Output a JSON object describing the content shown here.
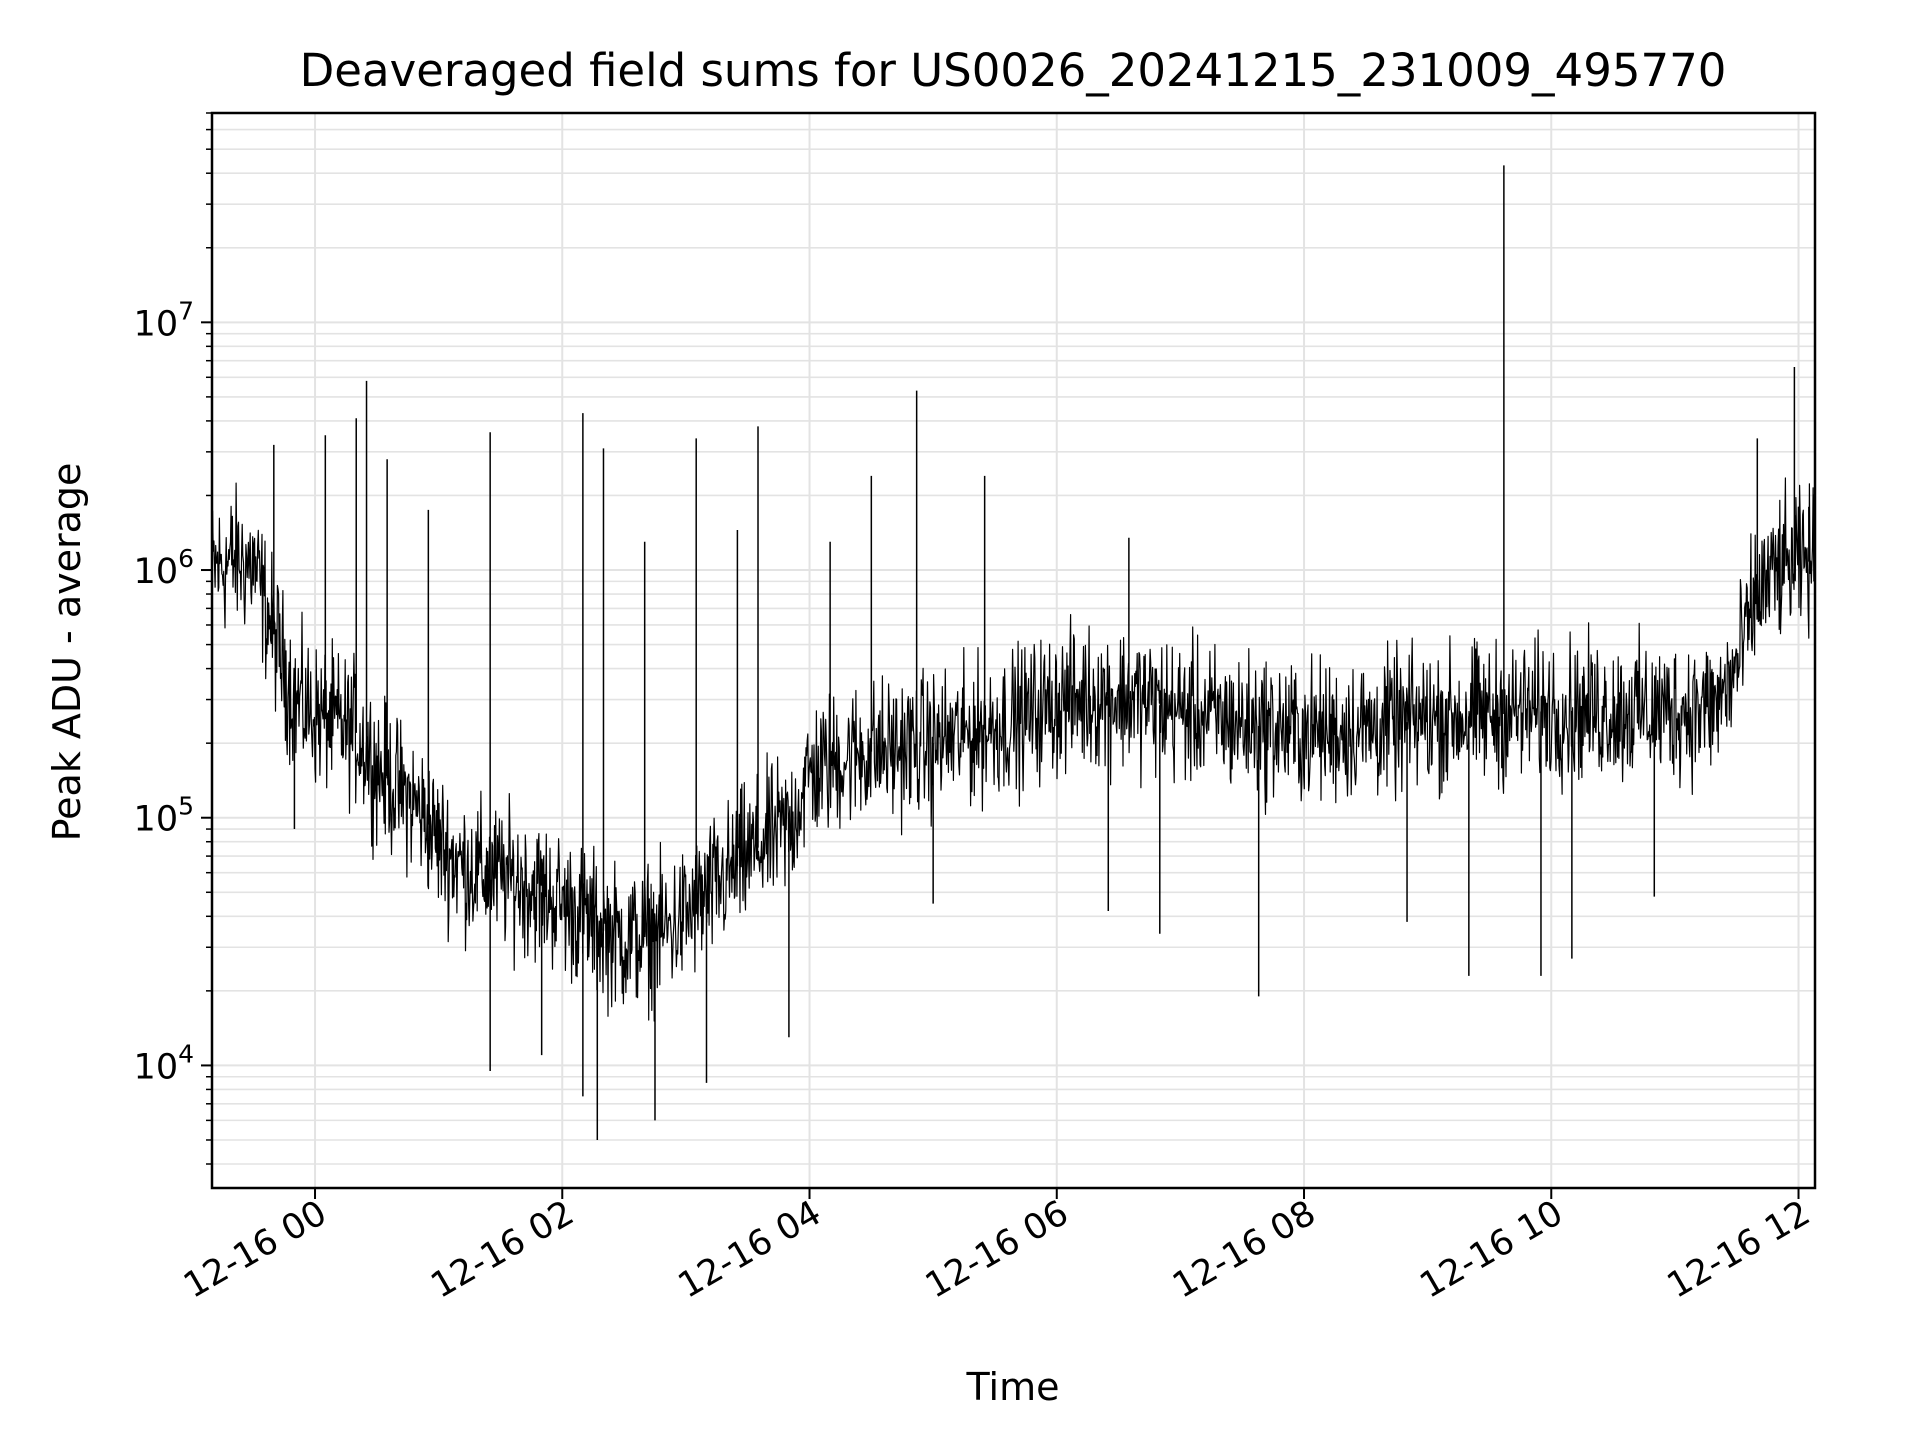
{
  "chart_data": {
    "type": "line",
    "title": "Deaveraged field sums for US0026_20241215_231009_495770",
    "xlabel": "Time",
    "ylabel": "Peak ADU - average",
    "x_range": [
      "2024-12-15 23:10",
      "2024-12-16 12:08"
    ],
    "yscale": "log",
    "ylim": [
      3200,
      70000000
    ],
    "grid": true,
    "grid_minor": true,
    "x_ticks": [
      {
        "t": "2024-12-16 00:00",
        "label": "12-16 00"
      },
      {
        "t": "2024-12-16 02:00",
        "label": "12-16 02"
      },
      {
        "t": "2024-12-16 04:00",
        "label": "12-16 04"
      },
      {
        "t": "2024-12-16 06:00",
        "label": "12-16 06"
      },
      {
        "t": "2024-12-16 08:00",
        "label": "12-16 08"
      },
      {
        "t": "2024-12-16 10:00",
        "label": "12-16 10"
      },
      {
        "t": "2024-12-16 12:00",
        "label": "12-16 12"
      }
    ],
    "y_ticks": [
      {
        "value": 10000,
        "base": "10",
        "exp": "4"
      },
      {
        "value": 100000,
        "base": "10",
        "exp": "5"
      },
      {
        "value": 1000000,
        "base": "10",
        "exp": "6"
      },
      {
        "value": 10000000,
        "base": "10",
        "exp": "7"
      }
    ],
    "series": [
      {
        "color": "#000000",
        "points": [
          [
            "2024-12-15 23:10",
            1000000
          ],
          [
            "2024-12-15 23:20",
            1100000
          ],
          [
            "2024-12-15 23:30",
            1050000
          ],
          [
            "2024-12-15 23:40",
            550000
          ],
          [
            "2024-12-15 23:50",
            300000
          ],
          [
            "2024-12-16 00:00",
            260000
          ],
          [
            "2024-12-16 00:10",
            240000
          ],
          [
            "2024-12-16 00:20",
            220000
          ],
          [
            "2024-12-16 00:30",
            160000
          ],
          [
            "2024-12-16 00:40",
            130000
          ],
          [
            "2024-12-16 00:50",
            110000
          ],
          [
            "2024-12-16 01:00",
            80000
          ],
          [
            "2024-12-16 01:10",
            65000
          ],
          [
            "2024-12-16 01:20",
            60000
          ],
          [
            "2024-12-16 01:30",
            58000
          ],
          [
            "2024-12-16 01:40",
            55000
          ],
          [
            "2024-12-16 01:50",
            50000
          ],
          [
            "2024-12-16 02:00",
            45000
          ],
          [
            "2024-12-16 02:10",
            40000
          ],
          [
            "2024-12-16 02:20",
            35000
          ],
          [
            "2024-12-16 02:30",
            32000
          ],
          [
            "2024-12-16 02:40",
            33000
          ],
          [
            "2024-12-16 02:50",
            35000
          ],
          [
            "2024-12-16 03:00",
            40000
          ],
          [
            "2024-12-16 03:10",
            48000
          ],
          [
            "2024-12-16 03:20",
            58000
          ],
          [
            "2024-12-16 03:30",
            70000
          ],
          [
            "2024-12-16 03:40",
            82000
          ],
          [
            "2024-12-16 03:50",
            92000
          ],
          [
            "2024-12-16 04:00",
            150000
          ],
          [
            "2024-12-16 04:20",
            180000
          ],
          [
            "2024-12-16 04:40",
            190000
          ],
          [
            "2024-12-16 05:00",
            200000
          ],
          [
            "2024-12-16 05:20",
            220000
          ],
          [
            "2024-12-16 05:40",
            250000
          ],
          [
            "2024-12-16 06:00",
            290000
          ],
          [
            "2024-12-16 06:20",
            310000
          ],
          [
            "2024-12-16 06:40",
            300000
          ],
          [
            "2024-12-16 07:00",
            270000
          ],
          [
            "2024-12-16 07:30",
            240000
          ],
          [
            "2024-12-16 08:00",
            220000
          ],
          [
            "2024-12-16 08:30",
            230000
          ],
          [
            "2024-12-16 09:00",
            250000
          ],
          [
            "2024-12-16 09:30",
            260000
          ],
          [
            "2024-12-16 10:00",
            270000
          ],
          [
            "2024-12-16 10:30",
            270000
          ],
          [
            "2024-12-16 11:00",
            270000
          ],
          [
            "2024-12-16 11:20",
            280000
          ],
          [
            "2024-12-16 11:30",
            400000
          ],
          [
            "2024-12-16 11:40",
            800000
          ],
          [
            "2024-12-16 11:50",
            1000000
          ],
          [
            "2024-12-16 12:00",
            1050000
          ],
          [
            "2024-12-16 12:08",
            1100000
          ]
        ],
        "spikes": [
          [
            "2024-12-15 23:40",
            3200000
          ],
          [
            "2024-12-16 00:05",
            3500000
          ],
          [
            "2024-12-16 00:20",
            4100000
          ],
          [
            "2024-12-16 00:25",
            5800000
          ],
          [
            "2024-12-16 00:35",
            2800000
          ],
          [
            "2024-12-16 00:55",
            1750000
          ],
          [
            "2024-12-16 01:25",
            3600000
          ],
          [
            "2024-12-16 02:10",
            4300000
          ],
          [
            "2024-12-16 02:20",
            3100000
          ],
          [
            "2024-12-16 02:40",
            1300000
          ],
          [
            "2024-12-16 03:05",
            3400000
          ],
          [
            "2024-12-16 03:25",
            1450000
          ],
          [
            "2024-12-16 03:35",
            3800000
          ],
          [
            "2024-12-16 04:10",
            1300000
          ],
          [
            "2024-12-16 04:30",
            2400000
          ],
          [
            "2024-12-16 04:52",
            5300000
          ],
          [
            "2024-12-16 05:25",
            2400000
          ],
          [
            "2024-12-16 06:35",
            1350000
          ],
          [
            "2024-12-16 09:37",
            43000000
          ],
          [
            "2024-12-16 11:40",
            3400000
          ],
          [
            "2024-12-16 11:58",
            6600000
          ],
          [
            "2024-12-16 12:05",
            1800000
          ]
        ],
        "dips": [
          [
            "2024-12-15 23:50",
            90000
          ],
          [
            "2024-12-16 01:25",
            9500
          ],
          [
            "2024-12-16 01:50",
            11000
          ],
          [
            "2024-12-16 02:10",
            7500
          ],
          [
            "2024-12-16 02:17",
            5000
          ],
          [
            "2024-12-16 02:45",
            6000
          ],
          [
            "2024-12-16 03:10",
            8500
          ],
          [
            "2024-12-16 03:50",
            13000
          ],
          [
            "2024-12-16 05:00",
            45000
          ],
          [
            "2024-12-16 06:25",
            42000
          ],
          [
            "2024-12-16 06:50",
            34000
          ],
          [
            "2024-12-16 07:38",
            19000
          ],
          [
            "2024-12-16 08:50",
            38000
          ],
          [
            "2024-12-16 09:20",
            23000
          ],
          [
            "2024-12-16 09:55",
            23000
          ],
          [
            "2024-12-16 10:10",
            27000
          ],
          [
            "2024-12-16 10:50",
            48000
          ]
        ]
      }
    ]
  }
}
